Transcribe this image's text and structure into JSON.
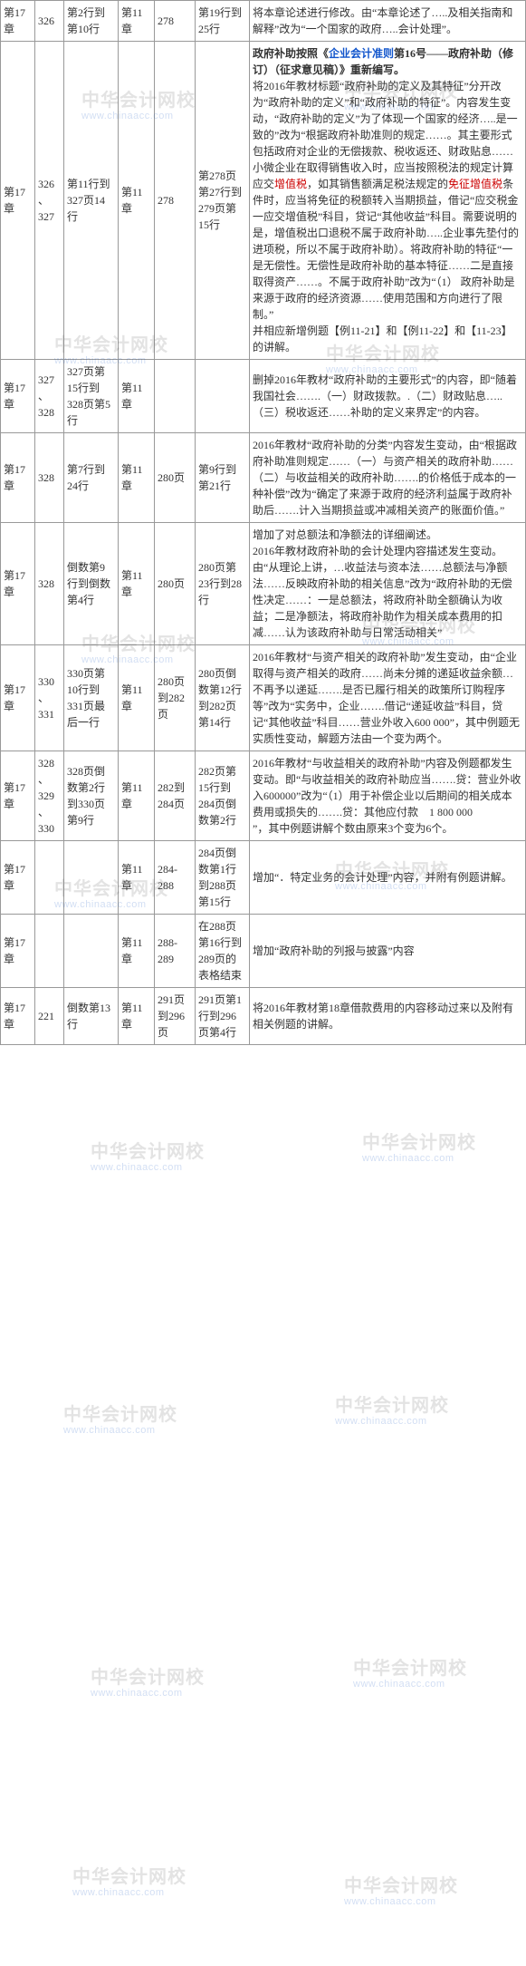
{
  "watermark": {
    "line1": "中华会计网校",
    "line2": "www.chinaacc.com"
  },
  "rows": [
    {
      "c0": "第17章",
      "c1": "326",
      "c2": "第2行到第10行",
      "c3": "第11章",
      "c4": "278",
      "c5": "第19行到25行",
      "c6": [
        {
          "t": "将本章论述进行修改。由“本章论述了…..及相关指南和解释”改为“一个国家的政府…..会计处理”。"
        }
      ]
    },
    {
      "c0": "第17章",
      "c1": "326、327",
      "c2": "第11行到327页14行",
      "c3": "第11章",
      "c4": "278",
      "c5": "第278页第27行到279页第15行",
      "c6": [
        {
          "t": "政府补助按照《",
          "b": true
        },
        {
          "t": "企业会计准则",
          "b": true,
          "blue": true
        },
        {
          "t": "第16号——政府补助（修订）（征求意见稿）》重新编写。",
          "b": true
        },
        {
          "br": true
        },
        {
          "t": "将2016年教材标题“政府补助的定义及其特征”分开改为“政府补助的定义”和“政府补助的特征”。内容发生变动，“政府补助的定义”为了体现一个国家的经济…..是一致的”改为“根据政府补助准则的规定……。其主要形式包括政府对企业的无偿拨款、税收返还、财政贴息……小微企业在取得销售收入时，应当按照税法的规定计算应交"
        },
        {
          "t": "增值税",
          "red": true
        },
        {
          "t": "，如其销售额满足税法规定的"
        },
        {
          "t": "免征增值税",
          "red": true
        },
        {
          "t": "条件时，应当将免征的税额转入当期损益，借记“应交税金一应交增值税”科目，贷记“其他收益”科目。需要说明的是，增值税出口退税不属于政府补助…..企业事先垫付的进项税，所以不属于政府补助）。将政府补助的特征“一是无偿性。无偿性是政府补助的基本特征……二是直接取得资产……。不属于政府补助”改为“（1）  政府补助是来源于政府的经济资源……使用范围和方向进行了限制。”"
        },
        {
          "br": true
        },
        {
          "t": "并相应新增例题【例11-21】和【例11-22】和【11-23】的讲解。"
        }
      ]
    },
    {
      "c0": "第17章",
      "c1": "327、328",
      "c2": "327页第15行到328页第5行",
      "c3": "第11章",
      "c4": "",
      "c5": "",
      "c6": [
        {
          "t": "删掉2016年教材“政府补助的主要形式”的内容，即“随着我国社会…….（一）财政拨款。.（二）财政贴息…..（三）税收返还……补助的定义来界定”的内容。"
        }
      ]
    },
    {
      "c0": "第17章",
      "c1": "328",
      "c2": "第7行到24行",
      "c3": "第11章",
      "c4": "280页",
      "c5": "第9行到第21行",
      "c6": [
        {
          "t": "2016年教材“政府补助的分类”内容发生变动，由“根据政府补助准则规定……（一）与资产相关的政府补助……（二）与收益相关的政府补助…….的价格低于成本的一种补偿”改为“确定了来源于政府的经济利益属于政府补助后…….计入当期损益或冲减相关资产的账面价值。”"
        }
      ]
    },
    {
      "c0": "第17章",
      "c1": "328",
      "c2": "倒数第9行到倒数第4行",
      "c3": "第11章",
      "c4": "280页",
      "c5": "280页第23行到28行",
      "c6": [
        {
          "t": "增加了对总额法和净额法的详细阐述。"
        },
        {
          "br": true
        },
        {
          "t": "2016年教材政府补助的会计处理内容描述发生变动。由“从理论上讲，…收益法与资本法……总额法与净额法……反映政府补助的相关信息”改为“政府补助的无偿性决定……：一是总额法，将政府补助全额确认为收益；二是净额法，将政府补助作为相关成本费用的扣减……认为该政府补助与日常活动相关”"
        }
      ]
    },
    {
      "c0": "第17章",
      "c1": "330、331",
      "c2": "330页第10行到331页最后一行",
      "c3": "第11章",
      "c4": "280页到282页",
      "c5": "280页倒数第12行到282页第14行",
      "c6": [
        {
          "t": "2016年教材“与资产相关的政府补助”发生变动，由“企业取得与资产相关的政府……尚未分摊的递延收益余额…不再予以递延…….是否已履行相关的政策所订购程序等”改为“实务中，企业…….借记“递延收益”科目，贷记“其他收益”科目……营业外收入600 000”，其中例题无实质性变动，解题方法由一个变为两个。"
        }
      ]
    },
    {
      "c0": "第17章",
      "c1": "328、329、330",
      "c2": "328页倒数第2行到330页第9行",
      "c3": "第11章",
      "c4": "282到284页",
      "c5": "282页第15行到284页倒数第2行",
      "c6": [
        {
          "t": "2016年教材“与收益相关的政府补助”内容及例题都发生变动。即“与收益相关的政府补助应当…….贷：营业外收入600000”改为“（1）用于补偿企业以后期间的相关成本费用或损失的…….贷：其他应付款　1 800 000"
        },
        {
          "br": true
        },
        {
          "t": "”，其中例题讲解个数由原来3个变为6个。"
        }
      ]
    },
    {
      "c0": "第17章",
      "c1": "",
      "c2": "",
      "c3": "第11章",
      "c4": "284-288",
      "c5": "284页倒数第1行到288页第15行",
      "c6": [
        {
          "t": "增加“．特定业务的会计处理”内容，并附有例题讲解。"
        }
      ]
    },
    {
      "c0": "第17章",
      "c1": "",
      "c2": "",
      "c3": "第11章",
      "c4": "288-289",
      "c5": "在288页第16行到289页的表格结束",
      "c6": [
        {
          "t": "增加“政府补助的列报与披露”内容"
        }
      ]
    },
    {
      "c0": "第17章",
      "c1": "221",
      "c2": "倒数第13行",
      "c3": "第11章",
      "c4": "291页到296页",
      "c5": "291页第1行到296页第4行",
      "c6": [
        {
          "t": "将2016年教材第18章借款费用的内容移动过来以及附有相关例题的讲解。"
        }
      ]
    }
  ]
}
